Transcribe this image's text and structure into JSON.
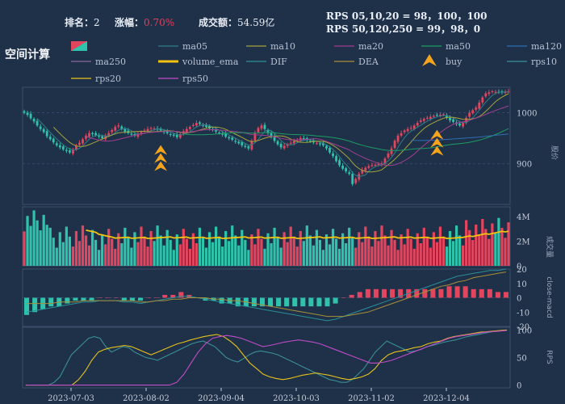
{
  "header": {
    "rank_label": "排名：",
    "rank_value": "2",
    "change_label": "涨幅：",
    "change_value": "0.70%",
    "turnover_label": "成交额：",
    "turnover_value": "54.59亿",
    "rps_line1": "RPS 05,10,20 = 98，100，100",
    "rps_line2": "RPS 50,120,250 = 99，98，0"
  },
  "title": "空间计算",
  "colors": {
    "background": "#1f3049",
    "up": "#e2455e",
    "down": "#2ec3aa",
    "volume_ema": "#f2c40f",
    "buy": "#f5a51b",
    "ma05": "#2f7f88",
    "ma10": "#a4a43c",
    "ma20": "#a03f8f",
    "ma50": "#1e9c63",
    "ma120": "#2f6fb3",
    "ma250": "#8a6aa0",
    "dif": "#2a8f98",
    "dea": "#a6903a",
    "rps10": "#3a8f96",
    "rps20": "#e6c21a",
    "rps50": "#c04cc7"
  },
  "legend": [
    {
      "name": "",
      "type": "candle-icon",
      "color": "#e2455e"
    },
    {
      "name": "ma05",
      "type": "line",
      "color": "#2f7f88"
    },
    {
      "name": "ma10",
      "type": "line",
      "color": "#a4a43c"
    },
    {
      "name": "ma20",
      "type": "line",
      "color": "#a03f8f"
    },
    {
      "name": "ma50",
      "type": "line",
      "color": "#1e9c63"
    },
    {
      "name": "ma120",
      "type": "line",
      "color": "#2f6fb3"
    },
    {
      "name": "ma250",
      "type": "line",
      "color": "#8a6aa0"
    },
    {
      "name": "volume_ema",
      "type": "thick-line",
      "color": "#f2c40f"
    },
    {
      "name": "DIF",
      "type": "line",
      "color": "#2a8f98"
    },
    {
      "name": "DEA",
      "type": "line",
      "color": "#a6903a"
    },
    {
      "name": "buy",
      "type": "arrow",
      "color": "#f5a51b"
    },
    {
      "name": "rps10",
      "type": "line",
      "color": "#3a8f96"
    },
    {
      "name": "rps20",
      "type": "line",
      "color": "#e6c21a"
    },
    {
      "name": "rps50",
      "type": "line",
      "color": "#c04cc7"
    }
  ],
  "chart_data": [
    {
      "type": "candlestick",
      "ylabel": "股价",
      "ylim": [
        820,
        1050
      ],
      "yticks": [
        900,
        1000
      ],
      "close": [
        1000,
        996,
        989,
        983,
        975,
        968,
        962,
        954,
        948,
        942,
        936,
        932,
        928,
        925,
        922,
        928,
        935,
        941,
        948,
        955,
        960,
        958,
        956,
        953,
        950,
        955,
        960,
        966,
        972,
        975,
        968,
        963,
        960,
        957,
        955,
        958,
        962,
        965,
        968,
        970,
        969,
        967,
        965,
        962,
        960,
        957,
        955,
        952,
        958,
        964,
        968,
        972,
        976,
        980,
        978,
        975,
        972,
        969,
        966,
        963,
        960,
        957,
        953,
        950,
        947,
        943,
        940,
        936,
        933,
        930,
        945,
        960,
        970,
        975,
        968,
        960,
        952,
        945,
        938,
        932,
        935,
        938,
        941,
        944,
        947,
        950,
        948,
        946,
        944,
        942,
        940,
        938,
        936,
        930,
        922,
        915,
        905,
        897,
        890,
        885,
        880,
        860,
        870,
        880,
        888,
        892,
        895,
        897,
        898,
        899,
        900,
        910,
        920,
        930,
        945,
        955,
        960,
        965,
        968,
        970,
        975,
        980,
        985,
        988,
        990,
        992,
        994,
        995,
        996,
        997,
        990,
        985,
        982,
        978,
        975,
        980,
        990,
        1000,
        1005,
        1010,
        1020,
        1030,
        1038,
        1040,
        1042,
        1041,
        1040,
        1040,
        1041,
        1042
      ],
      "buy_signal_index": [
        42,
        127
      ],
      "volume_ylim": [
        0,
        4800000
      ],
      "volume_yticks": [
        0,
        2000000,
        4000000
      ],
      "volume_ticklabels": [
        "0",
        "2M",
        "4M"
      ],
      "volume_label": "成交量",
      "xticks": [
        "2023-07-03",
        "2023-08-02",
        "2023-09-04",
        "2023-10-03",
        "2023-11-02",
        "2023-12-04"
      ]
    },
    {
      "type": "macd",
      "ylabel": "close-macd",
      "ylim": [
        -20,
        20
      ],
      "yticks": [
        -20,
        -10,
        0,
        10,
        20
      ],
      "dif": [
        -10,
        -9,
        -8,
        -7,
        -6,
        -5,
        -4,
        -3,
        -3,
        -2,
        -2,
        -2,
        -3,
        -3,
        -4,
        -3,
        -2,
        -1,
        0,
        1,
        1,
        0,
        -1,
        -2,
        -3,
        -4,
        -5,
        -6,
        -7,
        -8,
        -9,
        -10,
        -11,
        -12,
        -13,
        -14,
        -15,
        -16,
        -15,
        -13,
        -11,
        -9,
        -7,
        -5,
        -3,
        -1,
        1,
        3,
        5,
        7,
        9,
        11,
        13,
        15,
        16,
        17,
        18,
        19,
        19,
        20
      ],
      "dea": [
        -4,
        -4,
        -4,
        -4,
        -3,
        -3,
        -3,
        -2,
        -2,
        -2,
        -2,
        -2,
        -2,
        -2,
        -3,
        -3,
        -2,
        -2,
        -1,
        -1,
        0,
        0,
        0,
        -1,
        -1,
        -2,
        -2,
        -3,
        -4,
        -5,
        -6,
        -7,
        -8,
        -9,
        -10,
        -11,
        -12,
        -13,
        -13,
        -13,
        -12,
        -11,
        -10,
        -8,
        -6,
        -4,
        -2,
        0,
        2,
        4,
        6,
        8,
        9,
        11,
        12,
        14,
        15,
        16,
        17,
        18
      ]
    },
    {
      "type": "line",
      "ylabel": "RPS",
      "ylim": [
        -5,
        105
      ],
      "yticks": [
        0,
        50,
        100
      ],
      "series": [
        {
          "name": "rps10",
          "values": [
            0,
            0,
            0,
            0,
            0,
            5,
            15,
            35,
            55,
            65,
            75,
            85,
            88,
            85,
            70,
            60,
            65,
            70,
            68,
            60,
            55,
            50,
            48,
            45,
            50,
            55,
            60,
            65,
            70,
            75,
            78,
            80,
            75,
            70,
            60,
            50,
            45,
            42,
            48,
            55,
            60,
            62,
            60,
            58,
            55,
            50,
            45,
            40,
            35,
            30,
            25,
            20,
            15,
            10,
            8,
            5,
            5,
            10,
            20,
            30,
            45,
            60,
            70,
            80,
            75,
            70,
            65,
            60,
            62,
            65,
            70,
            72,
            75,
            78,
            80,
            82,
            85,
            88,
            90,
            92,
            94,
            96,
            98,
            99,
            100
          ]
        },
        {
          "name": "rps20",
          "values": [
            0,
            0,
            0,
            0,
            0,
            0,
            0,
            0,
            10,
            25,
            45,
            60,
            65,
            68,
            70,
            72,
            70,
            65,
            60,
            55,
            60,
            65,
            70,
            75,
            78,
            82,
            85,
            88,
            90,
            92,
            88,
            80,
            70,
            55,
            40,
            30,
            20,
            15,
            12,
            10,
            12,
            15,
            18,
            20,
            22,
            20,
            18,
            15,
            12,
            10,
            12,
            15,
            20,
            30,
            45,
            55,
            60,
            62,
            65,
            68,
            70,
            75,
            78,
            80,
            85,
            88,
            90,
            92,
            94,
            96,
            97,
            98,
            99,
            100
          ]
        },
        {
          "name": "rps50",
          "values": [
            0,
            0,
            0,
            0,
            0,
            0,
            0,
            0,
            0,
            0,
            0,
            0,
            0,
            0,
            0,
            0,
            0,
            0,
            0,
            0,
            0,
            5,
            20,
            40,
            60,
            75,
            85,
            88,
            90,
            88,
            85,
            80,
            75,
            70,
            72,
            75,
            78,
            80,
            82,
            80,
            78,
            75,
            70,
            65,
            60,
            55,
            50,
            45,
            40,
            40,
            42,
            45,
            50,
            55,
            60,
            65,
            70,
            75,
            80,
            85,
            88,
            90,
            92,
            94,
            96,
            97,
            98,
            99
          ]
        }
      ]
    }
  ]
}
